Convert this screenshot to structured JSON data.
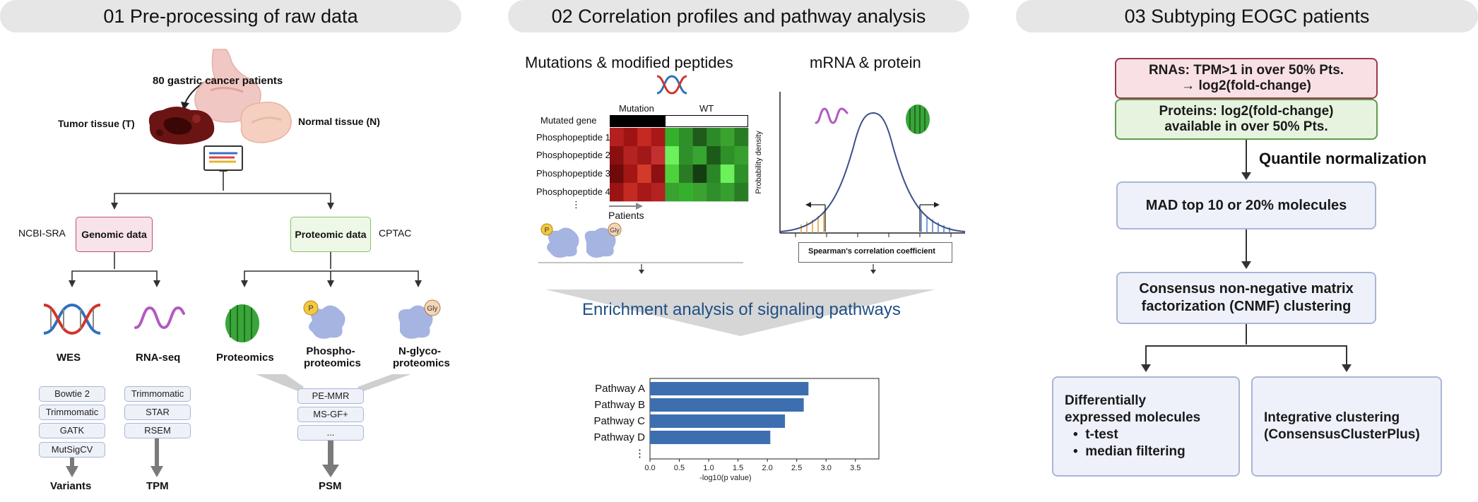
{
  "panels": {
    "p1": {
      "title": "01 Pre-processing of raw data",
      "patients": "80 gastric cancer patients",
      "tumor": "Tumor tissue (T)",
      "normal": "Normal tissue (N)",
      "source_left": "NCBI-SRA",
      "source_right": "CPTAC",
      "genomic": "Genomic data",
      "proteomic": "Proteomic data",
      "wes": "WES",
      "rnaseq": "RNA-seq",
      "proteomics": "Proteomics",
      "phospho": "Phospho-proteomics",
      "nglyco": "N-glyco-proteomics",
      "wes_tools": [
        "Bowtie 2",
        "Trimmomatic",
        "GATK",
        "MutSigCV"
      ],
      "rna_tools": [
        "Trimmomatic",
        "STAR",
        "RSEM"
      ],
      "prot_tools": [
        "PE-MMR",
        "MS-GF+",
        "..."
      ],
      "out_variants": "Variants",
      "out_tpm": "TPM",
      "out_psm": "PSM"
    },
    "p2": {
      "title": "02 Correlation profiles and pathway analysis",
      "sub_left": "Mutations & modified peptides",
      "sub_right": "mRNA & protein",
      "mutation": "Mutation",
      "wt": "WT",
      "mutated_gene": "Mutated gene",
      "peptides": [
        "Phosphopeptide 1",
        "Phosphopeptide 2",
        "Phosphopeptide 3",
        "Phosphopeptide 4",
        "⋮"
      ],
      "patients": "Patients",
      "prob_density": "Probability density",
      "spearman": "Spearman's correlation coefficient",
      "enrichment": "Enrichment analysis of signaling pathways",
      "badge_p": "P",
      "badge_gly": "Gly"
    },
    "p3": {
      "title": "03 Subtyping EOGC patients",
      "rna_line1": "RNAs: TPM>1  in over 50% Pts.",
      "rna_line2": "→ log2(fold-change)",
      "prot_line1": "Proteins:  log2(fold-change)",
      "prot_line2": "available in over 50% Pts.",
      "quantile": "Quantile normalization",
      "mad": "MAD top 10 or 20% molecules",
      "cnmf_line1": "Consensus non-negative matrix",
      "cnmf_line2": "factorization (CNMF) clustering",
      "de_line1": "Differentially",
      "de_line2": "expressed molecules",
      "bullet1": "t-test",
      "bullet2": "median filtering",
      "ic_line1": "Integrative clustering",
      "ic_line2": "(ConsensusClusterPlus)"
    }
  },
  "chart_data": {
    "type": "bar",
    "orientation": "horizontal",
    "categories": [
      "Pathway A",
      "Pathway B",
      "Pathway C",
      "Pathway D",
      "⋮"
    ],
    "values": [
      2.7,
      2.62,
      2.3,
      2.05,
      null
    ],
    "xlabel": "-log10(p value)",
    "xticks": [
      "0.0",
      "0.5",
      "1.0",
      "1.5",
      "2.0",
      "2.5",
      "3.0",
      "3.5"
    ],
    "xlim": [
      0,
      3.9
    ],
    "color": "#3d6fb0"
  },
  "heatmap": {
    "mutant_cols": 4,
    "wt_cols": 6,
    "cells": [
      [
        "#b41f1f",
        "#9e1414",
        "#c42a22",
        "#a81818",
        "#34b02c",
        "#2f8f2a",
        "#1f5c1b",
        "#2d8a28",
        "#3aa22f",
        "#2a7c24"
      ],
      [
        "#8a1010",
        "#b42222",
        "#a01818",
        "#c23030",
        "#6cf05c",
        "#2f8f2a",
        "#38a432",
        "#1c5a18",
        "#2e9028",
        "#36a02e"
      ],
      [
        "#6e0a0a",
        "#a41616",
        "#d23a2a",
        "#8e1010",
        "#4ed23c",
        "#2a7c24",
        "#143e12",
        "#2a8626",
        "#6cf05c",
        "#2e9028"
      ],
      [
        "#9a1414",
        "#c42a22",
        "#a81818",
        "#b42222",
        "#3aa22f",
        "#34b02c",
        "#3aa22f",
        "#2f8f2a",
        "#36a02e",
        "#2a7c24"
      ]
    ]
  },
  "colors": {
    "header_bg": "#e6e6e6",
    "genomic_fill": "#f8e3ea",
    "genomic_border": "#b8516e",
    "proteomic_fill": "#eef8e6",
    "proteomic_border": "#84c06a",
    "rna_box_fill": "#f8e0e4",
    "rna_box_border": "#9a3a4e",
    "prot_box_fill": "#e6f4df",
    "prot_box_border": "#5f9a4c",
    "step_fill": "#eef1fa",
    "step_border": "#a9b6d4",
    "enrichment_text": "#1f4f86",
    "tool_arrow": "#888888"
  },
  "icons": [
    "stomach-icon",
    "tumor-tissue-icon",
    "normal-tissue-icon",
    "monitor-icon",
    "dna-icon",
    "rna-icon",
    "green-protein-icon",
    "phospho-protein-icon",
    "glyco-protein-icon"
  ]
}
